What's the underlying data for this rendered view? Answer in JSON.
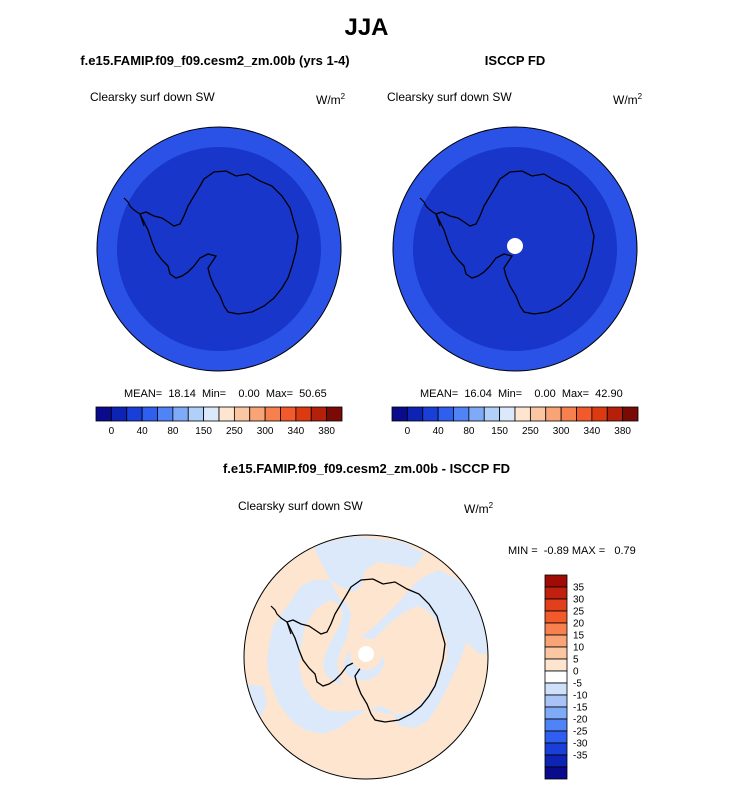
{
  "main_title": "JJA",
  "panels": {
    "model": {
      "title": "f.e15.FAMIP.f09_f09.cesm2_zm.00b (yrs 1-4)",
      "variable": "Clearsky surf down SW",
      "units": "W/m",
      "units_exp": "2",
      "stats": "MEAN=  18.14  Min=    0.00  Max=  50.65"
    },
    "obs": {
      "title": "ISCCP FD",
      "variable": "Clearsky surf down SW",
      "units": "W/m",
      "units_exp": "2",
      "stats": "MEAN=  16.04  Min=    0.00  Max=  42.90"
    },
    "diff": {
      "title": "f.e15.FAMIP.f09_f09.cesm2_zm.00b - ISCCP FD",
      "variable": "Clearsky surf down SW",
      "units": "W/m",
      "units_exp": "2",
      "stats": "MIN =  -0.89 MAX =   0.79"
    }
  },
  "chart_data": [
    {
      "type": "heatmap",
      "title": "f.e15.FAMIP.f09_f09.cesm2_zm.00b (yrs 1-4)",
      "variable": "Clearsky surf down SW",
      "units": "W/m2",
      "projection": "south polar stereographic",
      "mean": 18.14,
      "min": 0.0,
      "max": 50.65,
      "colorbar": {
        "ticks": [
          "0",
          "40",
          "80",
          "150",
          "250",
          "300",
          "340",
          "380"
        ],
        "colors": [
          "#0a0a8c",
          "#0d23b4",
          "#1a3fd9",
          "#2f5fee",
          "#4f83f6",
          "#7faaf8",
          "#b0cff9",
          "#dbe9fb",
          "#fde5cf",
          "#fbc7a3",
          "#f9a476",
          "#f7804f",
          "#f25a2b",
          "#dc3a11",
          "#b4200a",
          "#7a0a05"
        ]
      },
      "field_colors": [
        "#0d23b4",
        "#1a3fd9"
      ]
    },
    {
      "type": "heatmap",
      "title": "ISCCP FD",
      "variable": "Clearsky surf down SW",
      "units": "W/m2",
      "projection": "south polar stereographic",
      "mean": 16.04,
      "min": 0.0,
      "max": 42.9,
      "colorbar": {
        "ticks": [
          "0",
          "40",
          "80",
          "150",
          "250",
          "300",
          "340",
          "380"
        ]
      },
      "field_colors": [
        "#0d23b4",
        "#1a3fd9"
      ],
      "missing_at_pole": true
    },
    {
      "type": "heatmap",
      "title": "f.e15.FAMIP.f09_f09.cesm2_zm.00b - ISCCP FD",
      "variable": "Clearsky surf down SW",
      "units": "W/m2",
      "projection": "south polar stereographic",
      "min": -0.89,
      "max": 0.79,
      "colorbar": {
        "orientation": "vertical",
        "ticks": [
          "35",
          "30",
          "25",
          "20",
          "15",
          "10",
          "5",
          "0",
          "-5",
          "-10",
          "-15",
          "-20",
          "-25",
          "-30",
          "-35"
        ],
        "colors_top_to_bottom": [
          "#a00c05",
          "#c0200e",
          "#e0401c",
          "#f25a2b",
          "#f7804f",
          "#f9a476",
          "#fbc7a3",
          "#fde5cf",
          "#ffffff",
          "#cfe0fb",
          "#a8c4f7",
          "#7faaf8",
          "#4f83f6",
          "#2f5fee",
          "#1a3fd9",
          "#0d23b4",
          "#0a0a8c"
        ]
      },
      "field_colors": [
        "#fde5cf",
        "#dbe9fb"
      ],
      "missing_at_pole": true
    }
  ]
}
